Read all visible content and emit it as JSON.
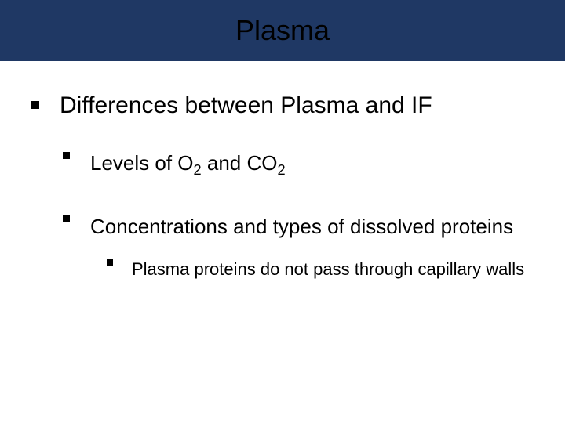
{
  "slide": {
    "title": "Plasma",
    "title_bar_color": "#1f3864",
    "title_text_color": "#000000",
    "background_color": "#ffffff",
    "bullet_color": "#000000",
    "text_color": "#000000",
    "heading": "Differences between Plasma and IF",
    "sub1_pre": "Levels of O",
    "sub1_s1": "2",
    "sub1_mid": " and CO",
    "sub1_s2": "2",
    "sub2": "Concentrations and types of dissolved proteins",
    "sub2a": "Plasma proteins do not pass through capillary walls"
  }
}
